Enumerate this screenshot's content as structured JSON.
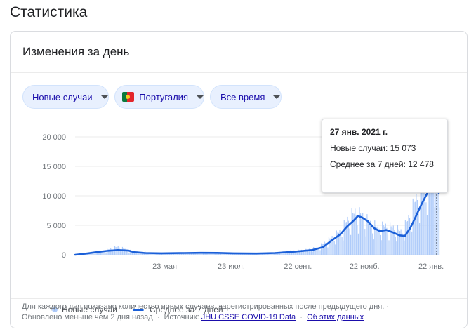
{
  "page": {
    "title": "Статистика"
  },
  "card": {
    "title": "Изменения за день"
  },
  "filters": {
    "metric": "Новые случаи",
    "country": "Португалия",
    "range": "Все время"
  },
  "tooltip": {
    "date": "27 янв. 2021 г.",
    "new_cases": "Новые случаи: 15 073",
    "avg7": "Среднее за 7 дней: 12 478"
  },
  "legend": {
    "bars": "Новые случаи",
    "line": "Среднее за 7 дней"
  },
  "footer": {
    "note": "Для каждого дня показано количество новых случаев, зарегистрированных после предыдущего дня.",
    "updated": "Обновлено меньше чем 2 дня назад",
    "source_label": "Источник:",
    "source_link": "JHU CSSE COVID-19 Data",
    "about_link": "Об этих данных"
  },
  "colors": {
    "bars": "#aecbfa",
    "line": "#1a5fd8",
    "grid": "#ebebeb",
    "accent_bg": "#e8f0fe",
    "link": "#1a0dab"
  },
  "chart_data": {
    "type": "bar",
    "xlabel": "",
    "ylabel": "",
    "ylim": [
      0,
      20000
    ],
    "yticks": [
      {
        "value": 0,
        "label": "0"
      },
      {
        "value": 5000,
        "label": "5 000"
      },
      {
        "value": 10000,
        "label": "10 000"
      },
      {
        "value": 15000,
        "label": "15 000"
      },
      {
        "value": 20000,
        "label": "20 000"
      }
    ],
    "xticks": [
      {
        "date": "2020-05-23",
        "label": "23 мая"
      },
      {
        "date": "2020-07-23",
        "label": "23 июл."
      },
      {
        "date": "2020-09-22",
        "label": "22 сент."
      },
      {
        "date": "2020-11-22",
        "label": "22 нояб."
      },
      {
        "date": "2021-01-22",
        "label": "22 янв."
      }
    ],
    "date_range": [
      "2020-03-02",
      "2021-01-29"
    ],
    "highlight": {
      "date": "2021-01-27",
      "new_cases": 15073,
      "avg7": 12478
    },
    "series": [
      {
        "name": "Новые случаи",
        "kind": "bars",
        "points": [
          [
            "2020-03-02",
            0
          ],
          [
            "2020-03-10",
            200
          ],
          [
            "2020-03-20",
            450
          ],
          [
            "2020-03-31",
            800
          ],
          [
            "2020-04-10",
            1300
          ],
          [
            "2020-04-20",
            700
          ],
          [
            "2020-05-01",
            450
          ],
          [
            "2020-05-15",
            280
          ],
          [
            "2020-06-01",
            300
          ],
          [
            "2020-06-15",
            330
          ],
          [
            "2020-07-01",
            350
          ],
          [
            "2020-07-15",
            300
          ],
          [
            "2020-08-01",
            250
          ],
          [
            "2020-08-15",
            250
          ],
          [
            "2020-09-01",
            350
          ],
          [
            "2020-09-15",
            600
          ],
          [
            "2020-09-30",
            800
          ],
          [
            "2020-10-10",
            1200
          ],
          [
            "2020-10-20",
            2400
          ],
          [
            "2020-10-31",
            3800
          ],
          [
            "2020-11-06",
            5600
          ],
          [
            "2020-11-13",
            6800
          ],
          [
            "2020-11-20",
            6200
          ],
          [
            "2020-11-27",
            5000
          ],
          [
            "2020-12-04",
            4400
          ],
          [
            "2020-12-11",
            4600
          ],
          [
            "2020-12-18",
            4300
          ],
          [
            "2020-12-26",
            3700
          ],
          [
            "2021-01-01",
            5800
          ],
          [
            "2021-01-08",
            9000
          ],
          [
            "2021-01-15",
            11000
          ],
          [
            "2021-01-22",
            14000
          ],
          [
            "2021-01-27",
            15073
          ],
          [
            "2021-01-29",
            7000
          ]
        ]
      },
      {
        "name": "Среднее за 7 дней",
        "kind": "line",
        "points": [
          [
            "2020-03-02",
            0
          ],
          [
            "2020-03-10",
            150
          ],
          [
            "2020-03-20",
            400
          ],
          [
            "2020-03-31",
            650
          ],
          [
            "2020-04-10",
            800
          ],
          [
            "2020-04-20",
            700
          ],
          [
            "2020-04-25",
            450
          ],
          [
            "2020-05-05",
            300
          ],
          [
            "2020-05-20",
            250
          ],
          [
            "2020-06-10",
            300
          ],
          [
            "2020-06-25",
            330
          ],
          [
            "2020-07-10",
            320
          ],
          [
            "2020-07-25",
            250
          ],
          [
            "2020-08-15",
            220
          ],
          [
            "2020-09-01",
            300
          ],
          [
            "2020-09-20",
            550
          ],
          [
            "2020-10-05",
            800
          ],
          [
            "2020-10-15",
            1300
          ],
          [
            "2020-10-22",
            2300
          ],
          [
            "2020-10-31",
            3500
          ],
          [
            "2020-11-06",
            4800
          ],
          [
            "2020-11-12",
            5800
          ],
          [
            "2020-11-16",
            6600
          ],
          [
            "2020-11-20",
            6300
          ],
          [
            "2020-11-25",
            5700
          ],
          [
            "2020-12-01",
            4500
          ],
          [
            "2020-12-06",
            4000
          ],
          [
            "2020-12-12",
            4200
          ],
          [
            "2020-12-18",
            3800
          ],
          [
            "2020-12-24",
            3300
          ],
          [
            "2020-12-29",
            3200
          ],
          [
            "2021-01-03",
            4600
          ],
          [
            "2021-01-08",
            6500
          ],
          [
            "2021-01-13",
            8500
          ],
          [
            "2021-01-18",
            10300
          ],
          [
            "2021-01-22",
            11500
          ],
          [
            "2021-01-24",
            12400
          ],
          [
            "2021-01-27",
            12478
          ],
          [
            "2021-01-29",
            10500
          ]
        ]
      }
    ]
  }
}
